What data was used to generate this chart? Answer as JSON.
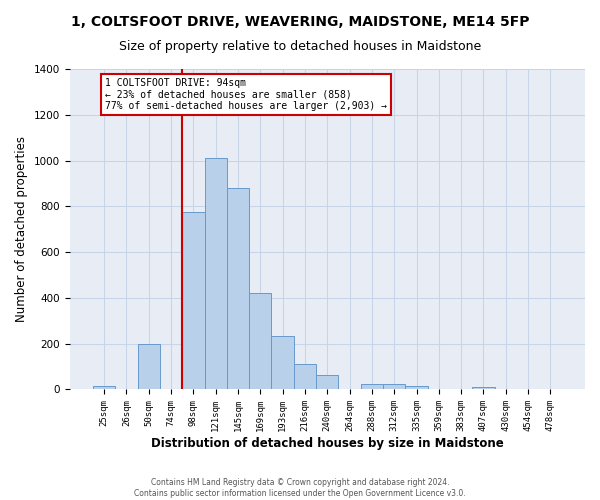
{
  "title": "1, COLTSFOOT DRIVE, WEAVERING, MAIDSTONE, ME14 5FP",
  "subtitle": "Size of property relative to detached houses in Maidstone",
  "xlabel": "Distribution of detached houses by size in Maidstone",
  "ylabel": "Number of detached properties",
  "categories": [
    "25sqm",
    "26sqm",
    "50sqm",
    "74sqm",
    "98sqm",
    "121sqm",
    "145sqm",
    "169sqm",
    "193sqm",
    "216sqm",
    "240sqm",
    "264sqm",
    "288sqm",
    "312sqm",
    "335sqm",
    "359sqm",
    "383sqm",
    "407sqm",
    "430sqm",
    "454sqm",
    "478sqm"
  ],
  "values": [
    15,
    0,
    200,
    0,
    775,
    1010,
    880,
    420,
    235,
    110,
    65,
    0,
    25,
    25,
    15,
    0,
    0,
    10,
    0,
    0,
    0
  ],
  "bar_color": "#b8d0ea",
  "bar_edge_color": "#6699cc",
  "vline_index": 3.5,
  "vline_color": "#cc0000",
  "annotation_line1": "1 COLTSFOOT DRIVE: 94sqm",
  "annotation_line2": "← 23% of detached houses are smaller (858)",
  "annotation_line3": "77% of semi-detached houses are larger (2,903) →",
  "annotation_box_edgecolor": "#cc0000",
  "ylim": [
    0,
    1400
  ],
  "yticks": [
    0,
    200,
    400,
    600,
    800,
    1000,
    1200,
    1400
  ],
  "grid_color": "#c8d4e8",
  "background_color": "#e8edf5",
  "footer1": "Contains HM Land Registry data © Crown copyright and database right 2024.",
  "footer2": "Contains public sector information licensed under the Open Government Licence v3.0."
}
